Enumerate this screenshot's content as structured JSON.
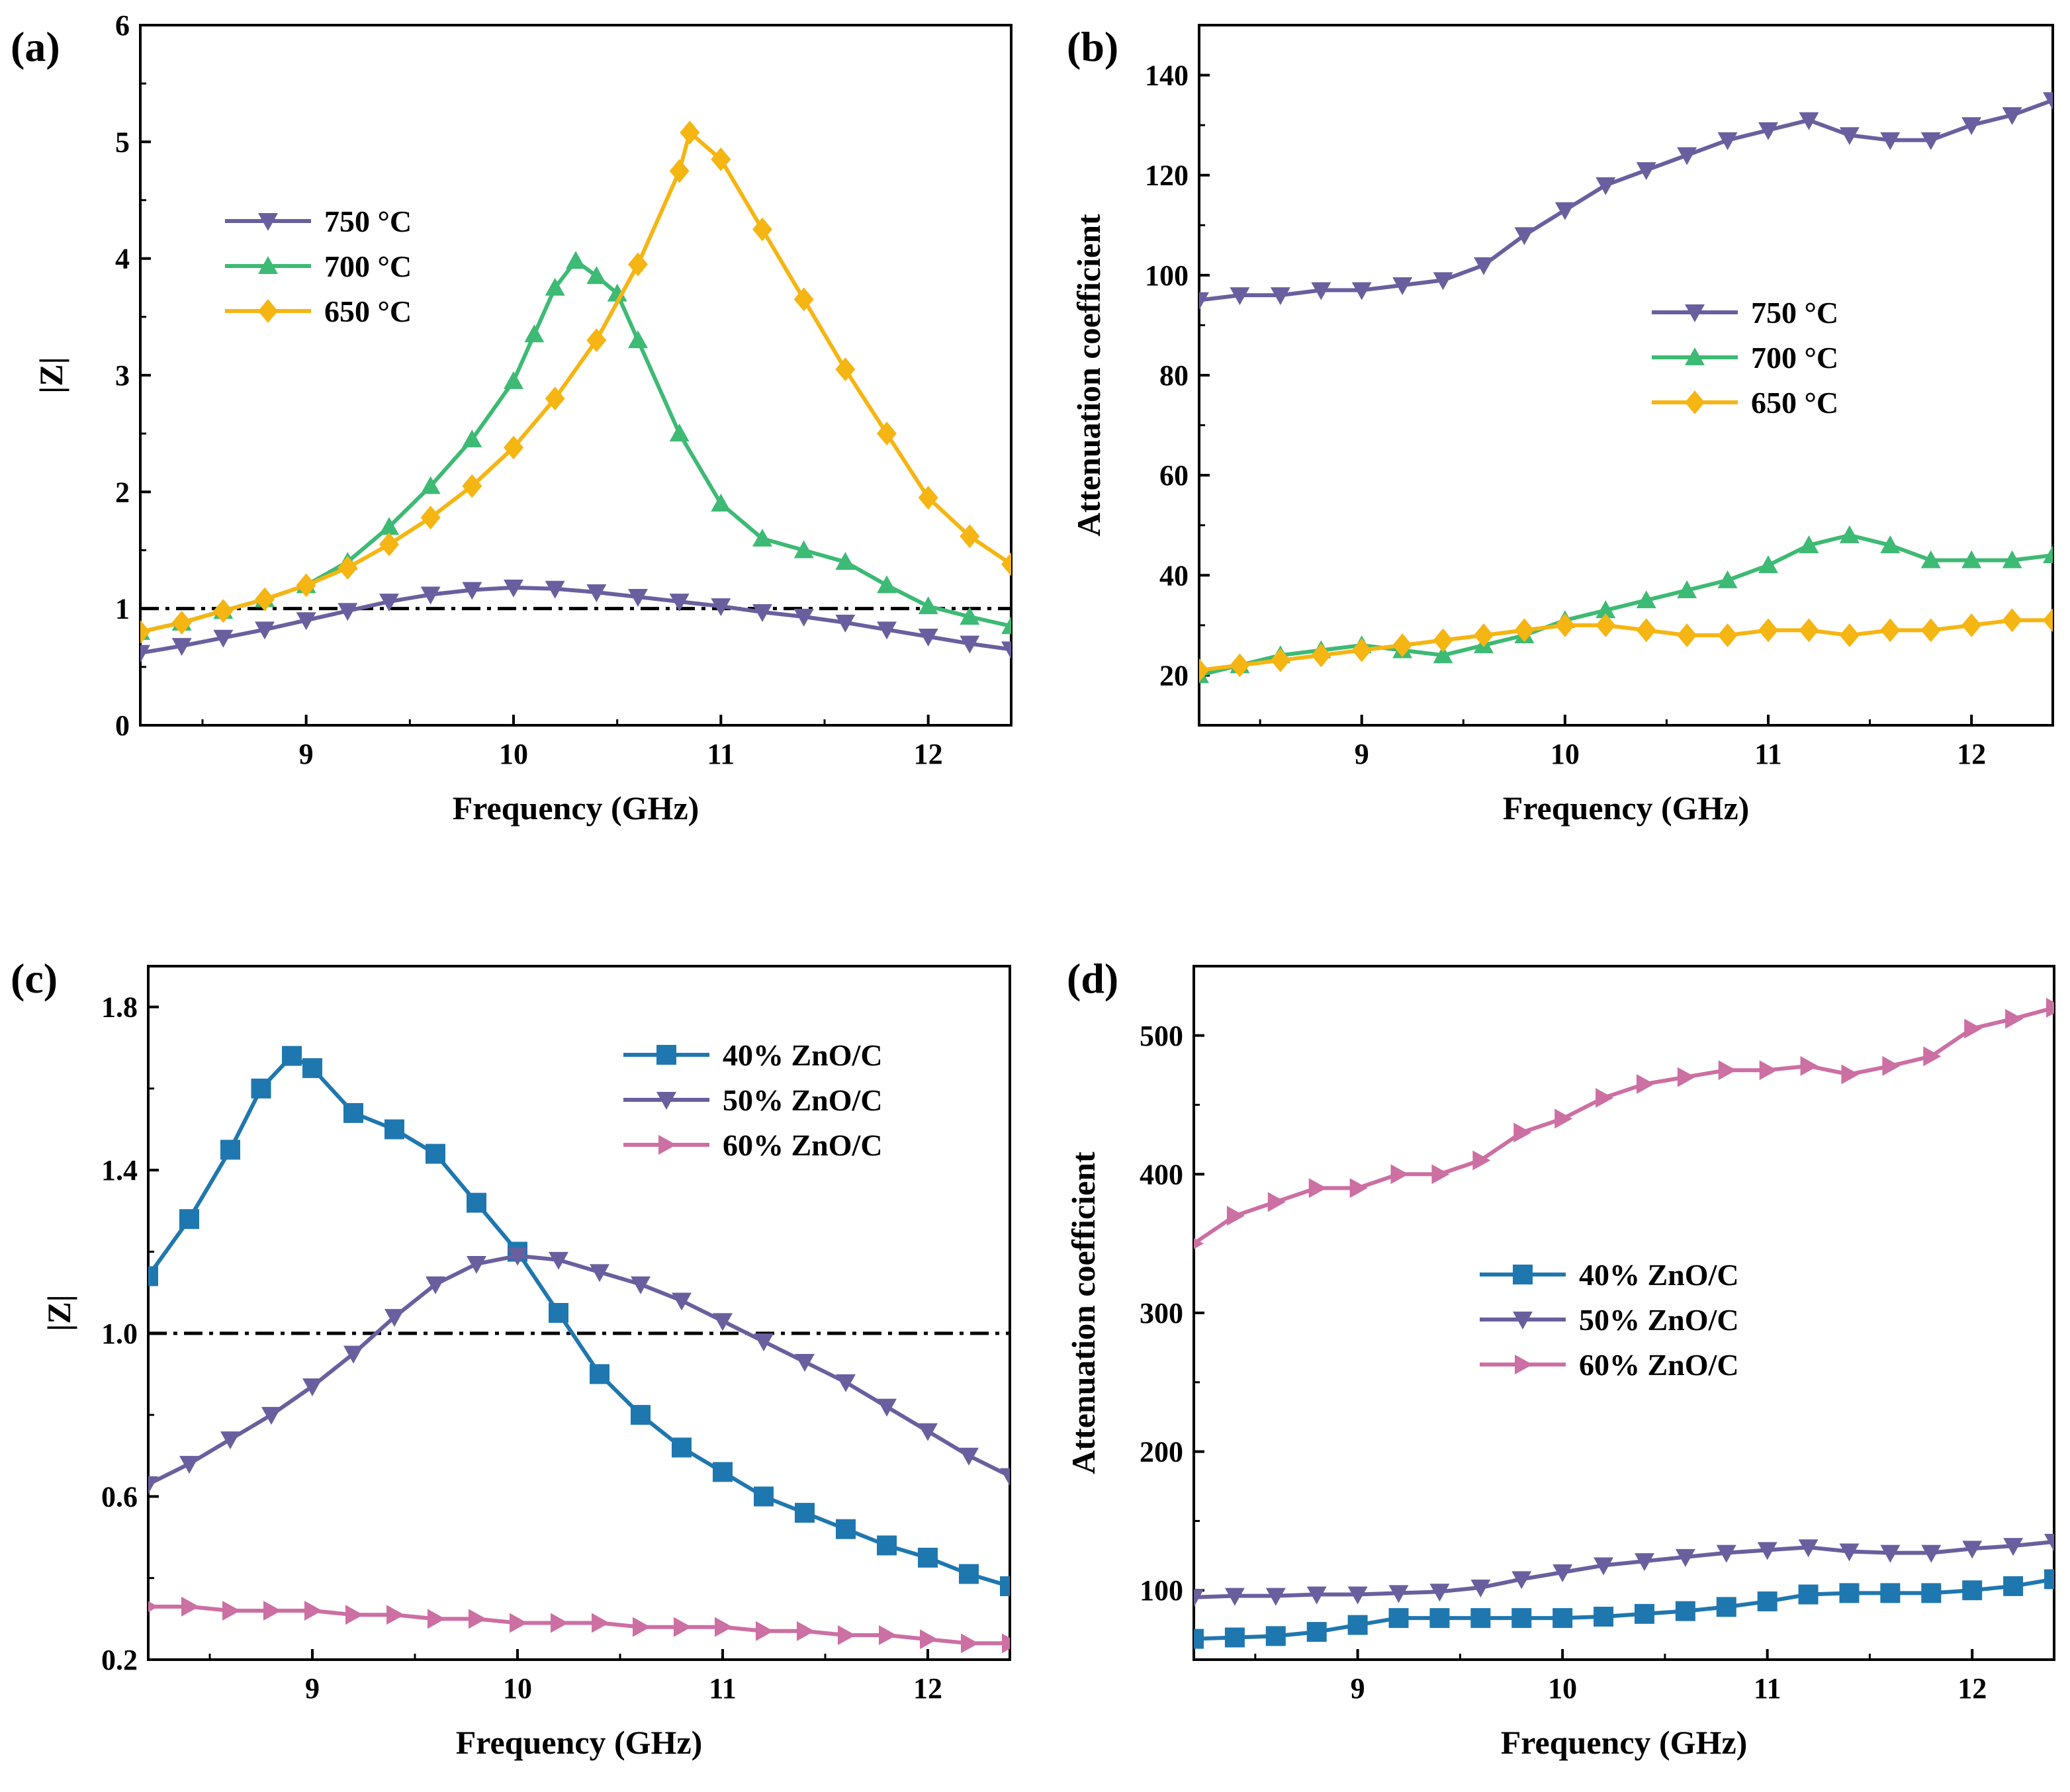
{
  "figure": {
    "title": ""
  },
  "chart_data": [
    {
      "panel": "(a)",
      "type": "line",
      "title": "",
      "xlabel": "Frequency (GHz)",
      "ylabel": "|Z|",
      "xlim": [
        8.2,
        12.4
      ],
      "ylim": [
        0,
        6
      ],
      "xticks": [
        9,
        10,
        11,
        12
      ],
      "yticks": [
        0,
        1,
        2,
        3,
        4,
        5,
        6
      ],
      "ytick_labels": [
        "0",
        "1",
        "2",
        "3",
        "4",
        "5",
        "6"
      ],
      "reference_line": {
        "y": 1,
        "style": "dash-dot"
      },
      "legend_position": "upper-left",
      "series": [
        {
          "name": "750 °C",
          "marker": "triangle-down",
          "color": "#6a5f9e",
          "x": [
            8.2,
            8.4,
            8.6,
            8.8,
            9.0,
            9.2,
            9.4,
            9.6,
            9.8,
            10.0,
            10.2,
            10.4,
            10.6,
            10.8,
            11.0,
            11.2,
            11.4,
            11.6,
            11.8,
            12.0,
            12.2,
            12.4
          ],
          "y": [
            0.62,
            0.68,
            0.75,
            0.82,
            0.9,
            0.98,
            1.06,
            1.12,
            1.16,
            1.18,
            1.17,
            1.14,
            1.1,
            1.06,
            1.02,
            0.97,
            0.93,
            0.88,
            0.82,
            0.76,
            0.7,
            0.65
          ]
        },
        {
          "name": "700 °C",
          "marker": "triangle-up",
          "color": "#3dba74",
          "x": [
            8.2,
            8.4,
            8.6,
            8.8,
            9.0,
            9.2,
            9.4,
            9.6,
            9.8,
            10.0,
            10.1,
            10.2,
            10.3,
            10.4,
            10.5,
            10.6,
            10.8,
            11.0,
            11.2,
            11.4,
            11.6,
            11.8,
            12.0,
            12.2,
            12.4
          ],
          "y": [
            0.8,
            0.88,
            0.98,
            1.08,
            1.2,
            1.4,
            1.7,
            2.05,
            2.45,
            2.95,
            3.35,
            3.75,
            3.98,
            3.85,
            3.7,
            3.3,
            2.5,
            1.9,
            1.6,
            1.5,
            1.4,
            1.2,
            1.02,
            0.93,
            0.85
          ]
        },
        {
          "name": "650 °C",
          "marker": "diamond",
          "color": "#f5b512",
          "x": [
            8.2,
            8.4,
            8.6,
            8.8,
            9.0,
            9.2,
            9.4,
            9.6,
            9.8,
            10.0,
            10.2,
            10.4,
            10.6,
            10.8,
            10.85,
            11.0,
            11.2,
            11.4,
            11.6,
            11.8,
            12.0,
            12.2,
            12.4
          ],
          "y": [
            0.8,
            0.88,
            0.98,
            1.08,
            1.2,
            1.35,
            1.55,
            1.78,
            2.05,
            2.38,
            2.8,
            3.3,
            3.95,
            4.75,
            5.08,
            4.85,
            4.25,
            3.65,
            3.05,
            2.5,
            1.95,
            1.62,
            1.38
          ]
        }
      ]
    },
    {
      "panel": "(b)",
      "type": "line",
      "title": "",
      "xlabel": "Frequency (GHz)",
      "ylabel": "Attenuation coefficient",
      "xlim": [
        8.2,
        12.4
      ],
      "ylim": [
        10,
        150
      ],
      "xticks": [
        9,
        10,
        11,
        12
      ],
      "yticks": [
        20,
        40,
        60,
        80,
        100,
        120,
        140
      ],
      "ytick_labels": [
        "20",
        "40",
        "60",
        "80",
        "100",
        "120",
        "140"
      ],
      "legend_position": "center-right",
      "series": [
        {
          "name": "750 °C",
          "marker": "triangle-down",
          "color": "#6a5f9e",
          "x": [
            8.2,
            8.4,
            8.6,
            8.8,
            9.0,
            9.2,
            9.4,
            9.6,
            9.8,
            10.0,
            10.2,
            10.4,
            10.6,
            10.8,
            11.0,
            11.2,
            11.4,
            11.6,
            11.8,
            12.0,
            12.2,
            12.4
          ],
          "y": [
            95,
            96,
            96,
            97,
            97,
            98,
            99,
            102,
            108,
            113,
            118,
            121,
            124,
            127,
            129,
            131,
            128,
            127,
            127,
            130,
            132,
            135
          ]
        },
        {
          "name": "700 °C",
          "marker": "triangle-up",
          "color": "#3dba74",
          "x": [
            8.2,
            8.4,
            8.6,
            8.8,
            9.0,
            9.2,
            9.4,
            9.6,
            9.8,
            10.0,
            10.2,
            10.4,
            10.6,
            10.8,
            11.0,
            11.2,
            11.4,
            11.6,
            11.8,
            12.0,
            12.2,
            12.4
          ],
          "y": [
            20,
            22,
            24,
            25,
            26,
            25,
            24,
            26,
            28,
            31,
            33,
            35,
            37,
            39,
            42,
            46,
            48,
            46,
            43,
            43,
            43,
            44
          ]
        },
        {
          "name": "650 °C",
          "marker": "diamond",
          "color": "#f5b512",
          "x": [
            8.2,
            8.4,
            8.6,
            8.8,
            9.0,
            9.2,
            9.4,
            9.6,
            9.8,
            10.0,
            10.2,
            10.4,
            10.6,
            10.8,
            11.0,
            11.2,
            11.4,
            11.6,
            11.8,
            12.0,
            12.2,
            12.4
          ],
          "y": [
            21,
            22,
            23,
            24,
            25,
            26,
            27,
            28,
            29,
            30,
            30,
            29,
            28,
            28,
            29,
            29,
            28,
            29,
            29,
            30,
            31,
            31
          ]
        }
      ]
    },
    {
      "panel": "(c)",
      "type": "line",
      "title": "",
      "xlabel": "Frequency (GHz)",
      "ylabel": "|Z|",
      "xlim": [
        8.2,
        12.4
      ],
      "ylim": [
        0.2,
        1.9
      ],
      "xticks": [
        9,
        10,
        11,
        12
      ],
      "yticks": [
        0.2,
        0.6,
        1.0,
        1.4,
        1.8
      ],
      "ytick_labels": [
        "0.2",
        "0.6",
        "1.0",
        "1.4",
        "1.8"
      ],
      "reference_line": {
        "y": 1.0,
        "style": "dash-dot"
      },
      "legend_position": "upper-right",
      "series": [
        {
          "name": "40% ZnO/C",
          "marker": "square",
          "color": "#1f77b0",
          "x": [
            8.2,
            8.4,
            8.6,
            8.75,
            8.9,
            9.0,
            9.2,
            9.4,
            9.6,
            9.8,
            10.0,
            10.2,
            10.4,
            10.6,
            10.8,
            11.0,
            11.2,
            11.4,
            11.6,
            11.8,
            12.0,
            12.2,
            12.4
          ],
          "y": [
            1.14,
            1.28,
            1.45,
            1.6,
            1.68,
            1.65,
            1.54,
            1.5,
            1.44,
            1.32,
            1.2,
            1.05,
            0.9,
            0.8,
            0.72,
            0.66,
            0.6,
            0.56,
            0.52,
            0.48,
            0.45,
            0.41,
            0.38
          ]
        },
        {
          "name": "50% ZnO/C",
          "marker": "triangle-down",
          "color": "#6a5f9e",
          "x": [
            8.2,
            8.4,
            8.6,
            8.8,
            9.0,
            9.2,
            9.4,
            9.6,
            9.8,
            10.0,
            10.2,
            10.4,
            10.6,
            10.8,
            11.0,
            11.2,
            11.4,
            11.6,
            11.8,
            12.0,
            12.2,
            12.4
          ],
          "y": [
            0.63,
            0.68,
            0.74,
            0.8,
            0.87,
            0.95,
            1.04,
            1.12,
            1.17,
            1.19,
            1.18,
            1.15,
            1.12,
            1.08,
            1.03,
            0.98,
            0.93,
            0.88,
            0.82,
            0.76,
            0.7,
            0.65
          ]
        },
        {
          "name": "60% ZnO/C",
          "marker": "triangle-right",
          "color": "#cc6fa3",
          "x": [
            8.2,
            8.4,
            8.6,
            8.8,
            9.0,
            9.2,
            9.4,
            9.6,
            9.8,
            10.0,
            10.2,
            10.4,
            10.6,
            10.8,
            11.0,
            11.2,
            11.4,
            11.6,
            11.8,
            12.0,
            12.2,
            12.4
          ],
          "y": [
            0.33,
            0.33,
            0.32,
            0.32,
            0.32,
            0.31,
            0.31,
            0.3,
            0.3,
            0.29,
            0.29,
            0.29,
            0.28,
            0.28,
            0.28,
            0.27,
            0.27,
            0.26,
            0.26,
            0.25,
            0.24,
            0.24
          ]
        }
      ]
    },
    {
      "panel": "(d)",
      "type": "line",
      "title": "",
      "xlabel": "Frequency (GHz)",
      "ylabel": "Attenuation coefficient",
      "xlim": [
        8.2,
        12.4
      ],
      "ylim": [
        50,
        550
      ],
      "xticks": [
        9,
        10,
        11,
        12
      ],
      "yticks": [
        100,
        200,
        300,
        400,
        500
      ],
      "ytick_labels": [
        "100",
        "200",
        "300",
        "400",
        "500"
      ],
      "legend_position": "center",
      "series": [
        {
          "name": "40% ZnO/C",
          "marker": "square",
          "color": "#1f77b0",
          "x": [
            8.2,
            8.4,
            8.6,
            8.8,
            9.0,
            9.2,
            9.4,
            9.6,
            9.8,
            10.0,
            10.2,
            10.4,
            10.6,
            10.8,
            11.0,
            11.2,
            11.4,
            11.6,
            11.8,
            12.0,
            12.2,
            12.4
          ],
          "y": [
            65,
            66,
            67,
            70,
            75,
            80,
            80,
            80,
            80,
            80,
            81,
            83,
            85,
            88,
            92,
            97,
            98,
            98,
            98,
            100,
            103,
            108
          ]
        },
        {
          "name": "50% ZnO/C",
          "marker": "triangle-down",
          "color": "#6a5f9e",
          "x": [
            8.2,
            8.4,
            8.6,
            8.8,
            9.0,
            9.2,
            9.4,
            9.6,
            9.8,
            10.0,
            10.2,
            10.4,
            10.6,
            10.8,
            11.0,
            11.2,
            11.4,
            11.6,
            11.8,
            12.0,
            12.2,
            12.4
          ],
          "y": [
            95,
            96,
            96,
            97,
            97,
            98,
            99,
            102,
            108,
            113,
            118,
            121,
            124,
            127,
            129,
            131,
            128,
            127,
            127,
            130,
            132,
            135
          ]
        },
        {
          "name": "60% ZnO/C",
          "marker": "triangle-right",
          "color": "#cc6fa3",
          "x": [
            8.2,
            8.4,
            8.6,
            8.8,
            9.0,
            9.2,
            9.4,
            9.6,
            9.8,
            10.0,
            10.2,
            10.4,
            10.6,
            10.8,
            11.0,
            11.2,
            11.4,
            11.6,
            11.8,
            12.0,
            12.2,
            12.4
          ],
          "y": [
            350,
            370,
            380,
            390,
            390,
            400,
            400,
            410,
            430,
            440,
            455,
            465,
            470,
            475,
            475,
            478,
            472,
            478,
            485,
            505,
            512,
            520
          ]
        }
      ]
    }
  ]
}
